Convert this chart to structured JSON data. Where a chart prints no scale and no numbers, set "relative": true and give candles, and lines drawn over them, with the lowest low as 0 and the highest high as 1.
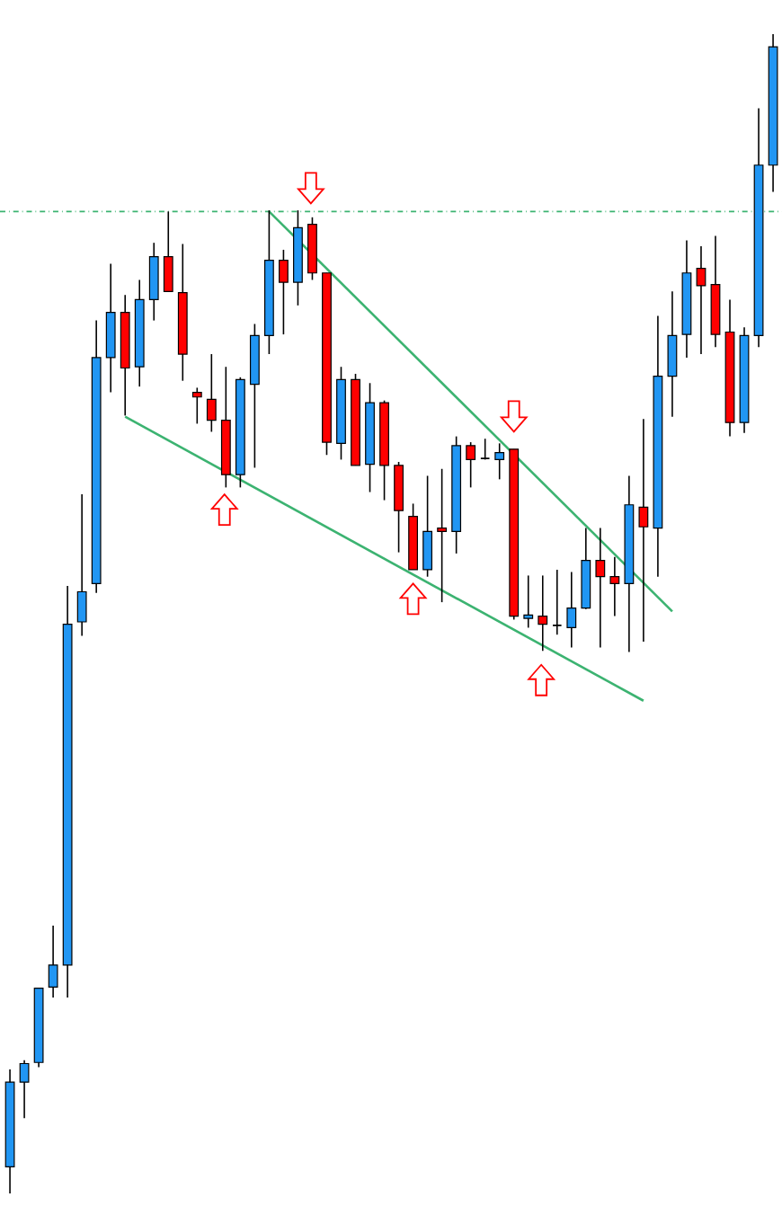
{
  "chart_data": {
    "type": "candlestick",
    "relative": true,
    "categories": [
      null,
      null,
      null,
      null,
      null,
      null,
      null,
      null,
      null,
      null,
      null,
      null,
      null,
      null,
      null,
      null,
      null,
      null,
      null,
      null,
      null,
      null,
      null,
      null,
      null,
      null,
      null,
      null,
      null,
      null,
      null,
      null,
      null,
      null,
      null,
      null,
      null,
      null,
      null,
      null,
      null,
      null,
      null,
      null,
      null,
      null,
      null,
      null,
      null,
      null,
      null,
      null,
      null,
      null
    ],
    "ohlc": [
      [
        0.023,
        0.107,
        0,
        0.096
      ],
      [
        0.096,
        0.115,
        0.065,
        0.112
      ],
      [
        0.113,
        0.177,
        0.109,
        0.177
      ],
      [
        0.178,
        0.231,
        0.169,
        0.197
      ],
      [
        0.197,
        0.524,
        0.169,
        0.491
      ],
      [
        0.493,
        0.603,
        0.481,
        0.519
      ],
      [
        0.526,
        0.753,
        0.518,
        0.721
      ],
      [
        0.721,
        0.802,
        0.691,
        0.76
      ],
      [
        0.76,
        0.775,
        0.671,
        0.712
      ],
      [
        0.713,
        0.788,
        0.696,
        0.771
      ],
      [
        0.771,
        0.82,
        0.753,
        0.808
      ],
      [
        0.808,
        0.847,
        0.778,
        0.778
      ],
      [
        0.777,
        0.819,
        0.701,
        0.724
      ],
      [
        0.691,
        0.695,
        0.664,
        0.687
      ],
      [
        0.685,
        0.724,
        0.657,
        0.667
      ],
      [
        0.667,
        0.713,
        0.609,
        0.62
      ],
      [
        0.62,
        0.704,
        0.609,
        0.702
      ],
      [
        0.698,
        0.75,
        0.626,
        0.74
      ],
      [
        0.74,
        0.848,
        0.724,
        0.805
      ],
      [
        0.805,
        0.814,
        0.741,
        0.786
      ],
      [
        0.786,
        0.848,
        0.766,
        0.833
      ],
      [
        0.836,
        0.842,
        0.788,
        0.794
      ],
      [
        0.794,
        0.794,
        0.637,
        0.648
      ],
      [
        0.647,
        0.713,
        0.633,
        0.702
      ],
      [
        0.702,
        0.707,
        0.628,
        0.628
      ],
      [
        0.629,
        0.699,
        0.605,
        0.682
      ],
      [
        0.682,
        0.684,
        0.598,
        0.628
      ],
      [
        0.628,
        0.631,
        0.553,
        0.589
      ],
      [
        0.584,
        0.595,
        0.538,
        0.538
      ],
      [
        0.538,
        0.619,
        0.532,
        0.571
      ],
      [
        0.574,
        0.625,
        0.51,
        0.571
      ],
      [
        0.571,
        0.653,
        0.552,
        0.645
      ],
      [
        0.645,
        0.648,
        0.609,
        0.633
      ],
      [
        0.634,
        0.651,
        0.633,
        0.634
      ],
      [
        0.633,
        0.647,
        0.616,
        0.639
      ],
      [
        0.642,
        0.642,
        0.495,
        0.498
      ],
      [
        0.496,
        0.533,
        0.488,
        0.499
      ],
      [
        0.498,
        0.533,
        0.468,
        0.491
      ],
      [
        0.49,
        0.538,
        0.482,
        0.49
      ],
      [
        0.488,
        0.536,
        0.471,
        0.505
      ],
      [
        0.505,
        0.574,
        0.504,
        0.546
      ],
      [
        0.546,
        0.574,
        0.471,
        0.532
      ],
      [
        0.532,
        0.549,
        0.498,
        0.526
      ],
      [
        0.526,
        0.619,
        0.467,
        0.594
      ],
      [
        0.592,
        0.668,
        0.476,
        0.575
      ],
      [
        0.574,
        0.757,
        0.532,
        0.705
      ],
      [
        0.705,
        0.778,
        0.67,
        0.74
      ],
      [
        0.741,
        0.822,
        0.721,
        0.794
      ],
      [
        0.798,
        0.817,
        0.724,
        0.783
      ],
      [
        0.784,
        0.826,
        0.73,
        0.741
      ],
      [
        0.743,
        0.771,
        0.653,
        0.665
      ],
      [
        0.665,
        0.747,
        0.656,
        0.74
      ],
      [
        0.74,
        0.936,
        0.73,
        0.887
      ],
      [
        0.887,
        1.0,
        0.864,
        0.989
      ]
    ],
    "series": [
      {
        "type": "line",
        "values": [
          null,
          null,
          null,
          null,
          null,
          null,
          null,
          null,
          null,
          null,
          null,
          null,
          null,
          null,
          null,
          null,
          null,
          null,
          0.847,
          null,
          null,
          null,
          null,
          null,
          null,
          null,
          null,
          null,
          null,
          null,
          null,
          null,
          null,
          null,
          null,
          null,
          null,
          null,
          null,
          null,
          null,
          null,
          null,
          null,
          null,
          null,
          0.502,
          null,
          null,
          null,
          null,
          null,
          null,
          null
        ],
        "color": "#3cb371"
      },
      {
        "type": "line",
        "values": [
          null,
          null,
          null,
          null,
          null,
          null,
          null,
          null,
          0.67,
          null,
          null,
          null,
          null,
          null,
          null,
          null,
          null,
          null,
          null,
          null,
          null,
          null,
          null,
          null,
          null,
          null,
          null,
          null,
          null,
          null,
          null,
          null,
          null,
          null,
          null,
          null,
          null,
          null,
          null,
          null,
          null,
          null,
          null,
          null,
          0.425,
          null,
          null,
          null,
          null,
          null,
          null,
          null,
          null,
          null
        ],
        "color": "#3cb371"
      }
    ],
    "ref_lines": [
      {
        "axis": "y",
        "value": 0.847,
        "color": "#3cb371",
        "line_style": "dashdot"
      }
    ]
  }
}
